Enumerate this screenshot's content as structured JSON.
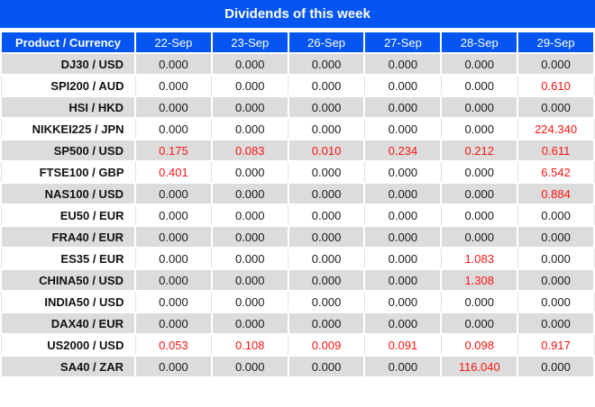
{
  "chart_data": {
    "type": "table",
    "title": "Dividends of this week",
    "columns": [
      "Product / Currency",
      "22-Sep",
      "23-Sep",
      "26-Sep",
      "27-Sep",
      "28-Sep",
      "29-Sep"
    ],
    "rows": [
      {
        "product": "DJ30 / USD",
        "values": [
          "0.000",
          "0.000",
          "0.000",
          "0.000",
          "0.000",
          "0.000"
        ],
        "red": []
      },
      {
        "product": "SPI200 / AUD",
        "values": [
          "0.000",
          "0.000",
          "0.000",
          "0.000",
          "0.000",
          "0.610"
        ],
        "red": [
          5
        ]
      },
      {
        "product": "HSI / HKD",
        "values": [
          "0.000",
          "0.000",
          "0.000",
          "0.000",
          "0.000",
          "0.000"
        ],
        "red": []
      },
      {
        "product": "NIKKEI225 / JPN",
        "values": [
          "0.000",
          "0.000",
          "0.000",
          "0.000",
          "0.000",
          "224.340"
        ],
        "red": [
          5
        ]
      },
      {
        "product": "SP500 / USD",
        "values": [
          "0.175",
          "0.083",
          "0.010",
          "0.234",
          "0.212",
          "0.611"
        ],
        "red": [
          0,
          1,
          2,
          3,
          4,
          5
        ]
      },
      {
        "product": "FTSE100 / GBP",
        "values": [
          "0.401",
          "0.000",
          "0.000",
          "0.000",
          "0.000",
          "6.542"
        ],
        "red": [
          0,
          5
        ]
      },
      {
        "product": "NAS100 / USD",
        "values": [
          "0.000",
          "0.000",
          "0.000",
          "0.000",
          "0.000",
          "0.884"
        ],
        "red": [
          5
        ]
      },
      {
        "product": "EU50 / EUR",
        "values": [
          "0.000",
          "0.000",
          "0.000",
          "0.000",
          "0.000",
          "0.000"
        ],
        "red": []
      },
      {
        "product": "FRA40 / EUR",
        "values": [
          "0.000",
          "0.000",
          "0.000",
          "0.000",
          "0.000",
          "0.000"
        ],
        "red": []
      },
      {
        "product": "ES35 / EUR",
        "values": [
          "0.000",
          "0.000",
          "0.000",
          "0.000",
          "1.083",
          "0.000"
        ],
        "red": [
          4
        ]
      },
      {
        "product": "CHINA50 / USD",
        "values": [
          "0.000",
          "0.000",
          "0.000",
          "0.000",
          "1.308",
          "0.000"
        ],
        "red": [
          4
        ]
      },
      {
        "product": "INDIA50 / USD",
        "values": [
          "0.000",
          "0.000",
          "0.000",
          "0.000",
          "0.000",
          "0.000"
        ],
        "red": []
      },
      {
        "product": "DAX40 / EUR",
        "values": [
          "0.000",
          "0.000",
          "0.000",
          "0.000",
          "0.000",
          "0.000"
        ],
        "red": []
      },
      {
        "product": "US2000 / USD",
        "values": [
          "0.053",
          "0.108",
          "0.009",
          "0.091",
          "0.098",
          "0.917"
        ],
        "red": [
          0,
          1,
          2,
          3,
          4,
          5
        ]
      },
      {
        "product": "SA40 / ZAR",
        "values": [
          "0.000",
          "0.000",
          "0.000",
          "0.000",
          "116.040",
          "0.000"
        ],
        "red": [
          4
        ]
      }
    ]
  },
  "colors": {
    "header_blue": "#0455f2",
    "stripe_gray": "#dcdcdc",
    "value_red": "#fb1414",
    "text_dark": "#1a1a1a"
  }
}
